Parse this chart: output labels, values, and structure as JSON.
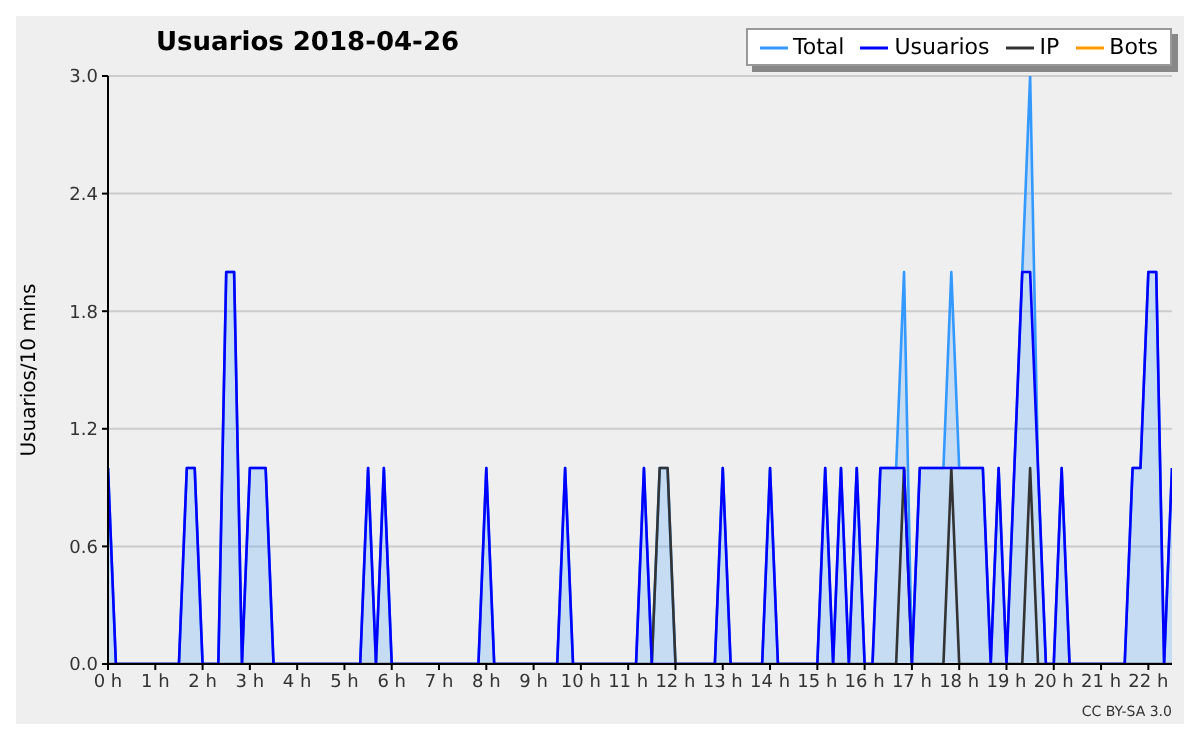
{
  "chart_data": {
    "type": "line",
    "title": "Usuarios  2018-04-26",
    "ylabel": "Usuarios/10 mins",
    "annotations": [
      "CC BY-SA 3.0"
    ],
    "x": [
      "2018-04-26T00:00",
      "2018-04-26T00:10",
      "2018-04-26T00:20",
      "2018-04-26T00:30",
      "2018-04-26T00:40",
      "2018-04-26T00:50",
      "2018-04-26T01:00",
      "2018-04-26T01:10",
      "2018-04-26T01:20",
      "2018-04-26T01:30",
      "2018-04-26T01:40",
      "2018-04-26T01:50",
      "2018-04-26T02:00",
      "2018-04-26T02:10",
      "2018-04-26T02:20",
      "2018-04-26T02:30",
      "2018-04-26T02:40",
      "2018-04-26T02:50",
      "2018-04-26T03:00",
      "2018-04-26T03:10",
      "2018-04-26T03:20",
      "2018-04-26T03:30",
      "2018-04-26T03:40",
      "2018-04-26T03:50",
      "2018-04-26T04:00",
      "2018-04-26T04:10",
      "2018-04-26T04:20",
      "2018-04-26T04:30",
      "2018-04-26T04:40",
      "2018-04-26T04:50",
      "2018-04-26T05:00",
      "2018-04-26T05:10",
      "2018-04-26T05:20",
      "2018-04-26T05:30",
      "2018-04-26T05:40",
      "2018-04-26T05:50",
      "2018-04-26T06:00",
      "2018-04-26T06:10",
      "2018-04-26T06:20",
      "2018-04-26T06:30",
      "2018-04-26T06:40",
      "2018-04-26T06:50",
      "2018-04-26T07:00",
      "2018-04-26T07:10",
      "2018-04-26T07:20",
      "2018-04-26T07:30",
      "2018-04-26T07:40",
      "2018-04-26T07:50",
      "2018-04-26T08:00",
      "2018-04-26T08:10",
      "2018-04-26T08:20",
      "2018-04-26T08:30",
      "2018-04-26T08:40",
      "2018-04-26T08:50",
      "2018-04-26T09:00",
      "2018-04-26T09:10",
      "2018-04-26T09:20",
      "2018-04-26T09:30",
      "2018-04-26T09:40",
      "2018-04-26T09:50",
      "2018-04-26T10:00",
      "2018-04-26T10:10",
      "2018-04-26T10:20",
      "2018-04-26T10:30",
      "2018-04-26T10:40",
      "2018-04-26T10:50",
      "2018-04-26T11:00",
      "2018-04-26T11:10",
      "2018-04-26T11:20",
      "2018-04-26T11:30",
      "2018-04-26T11:40",
      "2018-04-26T11:50",
      "2018-04-26T12:00",
      "2018-04-26T12:10",
      "2018-04-26T12:20",
      "2018-04-26T12:30",
      "2018-04-26T12:40",
      "2018-04-26T12:50",
      "2018-04-26T13:00",
      "2018-04-26T13:10",
      "2018-04-26T13:20",
      "2018-04-26T13:30",
      "2018-04-26T13:40",
      "2018-04-26T13:50",
      "2018-04-26T14:00",
      "2018-04-26T14:10",
      "2018-04-26T14:20",
      "2018-04-26T14:30",
      "2018-04-26T14:40",
      "2018-04-26T14:50",
      "2018-04-26T15:00",
      "2018-04-26T15:10",
      "2018-04-26T15:20",
      "2018-04-26T15:30",
      "2018-04-26T15:40",
      "2018-04-26T15:50",
      "2018-04-26T16:00",
      "2018-04-26T16:10",
      "2018-04-26T16:20",
      "2018-04-26T16:30",
      "2018-04-26T16:40",
      "2018-04-26T16:50",
      "2018-04-26T17:00",
      "2018-04-26T17:10",
      "2018-04-26T17:20",
      "2018-04-26T17:30",
      "2018-04-26T17:40",
      "2018-04-26T17:50",
      "2018-04-26T18:00",
      "2018-04-26T18:10",
      "2018-04-26T18:20",
      "2018-04-26T18:30",
      "2018-04-26T18:40",
      "2018-04-26T18:50",
      "2018-04-26T19:00",
      "2018-04-26T19:10",
      "2018-04-26T19:20",
      "2018-04-26T19:30",
      "2018-04-26T19:40",
      "2018-04-26T19:50",
      "2018-04-26T20:00",
      "2018-04-26T20:10",
      "2018-04-26T20:20",
      "2018-04-26T20:30",
      "2018-04-26T20:40",
      "2018-04-26T20:50",
      "2018-04-26T21:00",
      "2018-04-26T21:10",
      "2018-04-26T21:20",
      "2018-04-26T21:30",
      "2018-04-26T21:40",
      "2018-04-26T21:50",
      "2018-04-26T22:00",
      "2018-04-26T22:10",
      "2018-04-26T22:20",
      "2018-04-26T22:30"
    ],
    "series": [
      {
        "name": "Total",
        "type": "area",
        "color": "#3399ff",
        "values": [
          1,
          0,
          0,
          0,
          0,
          0,
          0,
          0,
          0,
          0,
          1,
          1,
          0,
          0,
          0,
          2,
          2,
          0,
          1,
          1,
          1,
          0,
          0,
          0,
          0,
          0,
          0,
          0,
          0,
          0,
          0,
          0,
          0,
          1,
          0,
          1,
          0,
          0,
          0,
          0,
          0,
          0,
          0,
          0,
          0,
          0,
          0,
          0,
          1,
          0,
          0,
          0,
          0,
          0,
          0,
          0,
          0,
          0,
          1,
          0,
          0,
          0,
          0,
          0,
          0,
          0,
          0,
          0,
          1,
          0,
          1,
          1,
          0,
          0,
          0,
          0,
          0,
          0,
          1,
          0,
          0,
          0,
          0,
          0,
          1,
          0,
          0,
          0,
          0,
          0,
          0,
          1,
          0,
          1,
          0,
          1,
          0,
          0,
          1,
          1,
          1,
          2,
          0,
          1,
          1,
          1,
          1,
          2,
          1,
          1,
          1,
          1,
          0,
          1,
          0,
          1,
          2,
          3,
          1,
          0,
          0,
          1,
          0,
          0,
          0,
          0,
          0,
          0,
          0,
          0,
          1,
          1,
          2,
          2,
          0,
          1
        ]
      },
      {
        "name": "Usuarios",
        "color": "#0000ff",
        "values": [
          1,
          0,
          0,
          0,
          0,
          0,
          0,
          0,
          0,
          0,
          1,
          1,
          0,
          0,
          0,
          2,
          2,
          0,
          1,
          1,
          1,
          0,
          0,
          0,
          0,
          0,
          0,
          0,
          0,
          0,
          0,
          0,
          0,
          1,
          0,
          1,
          0,
          0,
          0,
          0,
          0,
          0,
          0,
          0,
          0,
          0,
          0,
          0,
          1,
          0,
          0,
          0,
          0,
          0,
          0,
          0,
          0,
          0,
          1,
          0,
          0,
          0,
          0,
          0,
          0,
          0,
          0,
          0,
          1,
          0,
          0,
          0,
          0,
          0,
          0,
          0,
          0,
          0,
          1,
          0,
          0,
          0,
          0,
          0,
          1,
          0,
          0,
          0,
          0,
          0,
          0,
          1,
          0,
          1,
          0,
          1,
          0,
          0,
          1,
          1,
          1,
          1,
          0,
          1,
          1,
          1,
          1,
          1,
          1,
          1,
          1,
          1,
          0,
          1,
          0,
          1,
          2,
          2,
          1,
          0,
          0,
          1,
          0,
          0,
          0,
          0,
          0,
          0,
          0,
          0,
          1,
          1,
          2,
          2,
          0,
          1
        ]
      },
      {
        "name": "IP",
        "color": "#333333",
        "values": [
          0,
          0,
          0,
          0,
          0,
          0,
          0,
          0,
          0,
          0,
          0,
          0,
          0,
          0,
          0,
          0,
          0,
          0,
          0,
          0,
          0,
          0,
          0,
          0,
          0,
          0,
          0,
          0,
          0,
          0,
          0,
          0,
          0,
          0,
          0,
          0,
          0,
          0,
          0,
          0,
          0,
          0,
          0,
          0,
          0,
          0,
          0,
          0,
          0,
          0,
          0,
          0,
          0,
          0,
          0,
          0,
          0,
          0,
          0,
          0,
          0,
          0,
          0,
          0,
          0,
          0,
          0,
          0,
          0,
          0,
          1,
          1,
          0,
          0,
          0,
          0,
          0,
          0,
          0,
          0,
          0,
          0,
          0,
          0,
          0,
          0,
          0,
          0,
          0,
          0,
          0,
          0,
          0,
          0,
          0,
          0,
          0,
          0,
          0,
          0,
          0,
          1,
          0,
          0,
          0,
          0,
          0,
          1,
          0,
          0,
          0,
          0,
          0,
          0,
          0,
          0,
          0,
          1,
          0,
          0,
          0,
          0,
          0,
          0,
          0,
          0,
          0,
          0,
          0,
          0,
          0,
          0,
          0,
          0,
          0,
          0
        ]
      },
      {
        "name": "Bots",
        "color": "#ff9900",
        "values": [
          null,
          null,
          null,
          null,
          null,
          null,
          null,
          null,
          null,
          null,
          null,
          null,
          null,
          null,
          null,
          null,
          null,
          null,
          null,
          null,
          null,
          null,
          null,
          null,
          null,
          null,
          null,
          null,
          null,
          null,
          null,
          null,
          null,
          null,
          null,
          null,
          null,
          null,
          null,
          null,
          null,
          null,
          null,
          null,
          null,
          null,
          null,
          null,
          null,
          null,
          null,
          null,
          null,
          null,
          null,
          null,
          null,
          null,
          null,
          null,
          null,
          null,
          null,
          null,
          null,
          null,
          null,
          null,
          null,
          null,
          null,
          null,
          null,
          null,
          null,
          null,
          null,
          null,
          null,
          null,
          null,
          null,
          null,
          null,
          null,
          null,
          null,
          null,
          null,
          null,
          null,
          null,
          null,
          null,
          null,
          null,
          null,
          null,
          null,
          null,
          null,
          null,
          null,
          null,
          null,
          null,
          null,
          null,
          null,
          null,
          null,
          null,
          null,
          null,
          null,
          null,
          null,
          null,
          null,
          null,
          null,
          null,
          null,
          null,
          null,
          null,
          null,
          null,
          null,
          null,
          null,
          null,
          null,
          null,
          null,
          null
        ]
      }
    ],
    "xlim": [
      "2018-04-26T00:00",
      "2018-04-26T22:30"
    ],
    "xticks": [
      {
        "value": "2018-04-26T00:00",
        "label": "0 h"
      },
      {
        "value": "2018-04-26T01:00",
        "label": "1 h"
      },
      {
        "value": "2018-04-26T02:00",
        "label": "2 h"
      },
      {
        "value": "2018-04-26T03:00",
        "label": "3 h"
      },
      {
        "value": "2018-04-26T04:00",
        "label": "4 h"
      },
      {
        "value": "2018-04-26T05:00",
        "label": "5 h"
      },
      {
        "value": "2018-04-26T06:00",
        "label": "6 h"
      },
      {
        "value": "2018-04-26T07:00",
        "label": "7 h"
      },
      {
        "value": "2018-04-26T08:00",
        "label": "8 h"
      },
      {
        "value": "2018-04-26T09:00",
        "label": "9 h"
      },
      {
        "value": "2018-04-26T10:00",
        "label": "10 h"
      },
      {
        "value": "2018-04-26T11:00",
        "label": "11 h"
      },
      {
        "value": "2018-04-26T12:00",
        "label": "12 h"
      },
      {
        "value": "2018-04-26T13:00",
        "label": "13 h"
      },
      {
        "value": "2018-04-26T14:00",
        "label": "14 h"
      },
      {
        "value": "2018-04-26T15:00",
        "label": "15 h"
      },
      {
        "value": "2018-04-26T16:00",
        "label": "16 h"
      },
      {
        "value": "2018-04-26T17:00",
        "label": "17 h"
      },
      {
        "value": "2018-04-26T18:00",
        "label": "18 h"
      },
      {
        "value": "2018-04-26T19:00",
        "label": "19 h"
      },
      {
        "value": "2018-04-26T20:00",
        "label": "20 h"
      },
      {
        "value": "2018-04-26T21:00",
        "label": "21 h"
      },
      {
        "value": "2018-04-26T22:00",
        "label": "22 h"
      }
    ],
    "ylim": [
      0,
      3
    ],
    "yticks": [
      {
        "value": 0,
        "label": "0.0"
      },
      {
        "value": 0.6,
        "label": "0.6"
      },
      {
        "value": 1.2,
        "label": "1.2"
      },
      {
        "value": 1.8,
        "label": "1.8"
      },
      {
        "value": 2.4,
        "label": "2.4"
      },
      {
        "value": 3,
        "label": "3.0"
      }
    ],
    "grid": "y",
    "legend": "top right",
    "marker": "none",
    "line_style": "solid"
  }
}
